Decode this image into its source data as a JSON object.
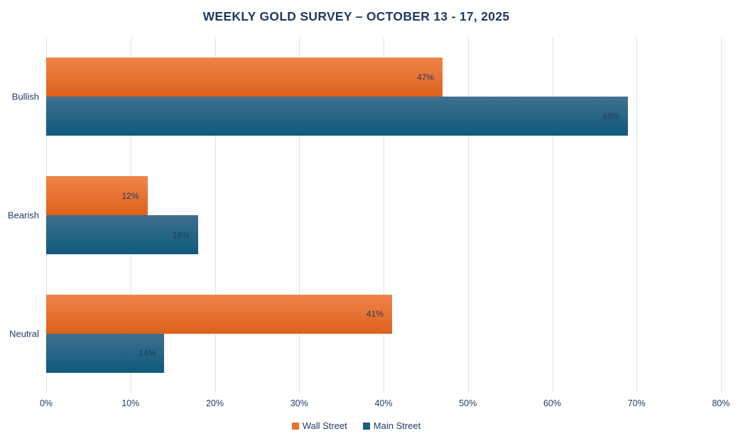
{
  "title": "WEEKLY GOLD SURVEY – OCTOBER 13 - 17, 2025",
  "chart_data": {
    "type": "bar",
    "orientation": "horizontal",
    "title": "WEEKLY GOLD SURVEY – OCTOBER 13 - 17, 2025",
    "categories": [
      "Bullish",
      "Bearish",
      "Neutral"
    ],
    "series": [
      {
        "name": "Wall Street",
        "values": [
          47,
          12,
          41
        ],
        "color": "#E8732E",
        "gradient_top": "#EF8449",
        "gradient_bottom": "#DD611C"
      },
      {
        "name": "Main Street",
        "values": [
          69,
          18,
          14
        ],
        "color": "#1A5F80",
        "gradient_top": "#40708E",
        "gradient_bottom": "#0E5A7D"
      }
    ],
    "xlim": [
      0,
      80
    ],
    "x_ticks": [
      "0%",
      "10%",
      "20%",
      "30%",
      "40%",
      "50%",
      "60%",
      "70%",
      "80%"
    ],
    "data_label_suffix": "%",
    "xlabel": "",
    "ylabel": "",
    "grid": "vertical",
    "legend_position": "bottom"
  },
  "colors": {
    "text": "#1E3A5F",
    "gridline": "#D5E5F4",
    "background": "#FFFFFF"
  }
}
